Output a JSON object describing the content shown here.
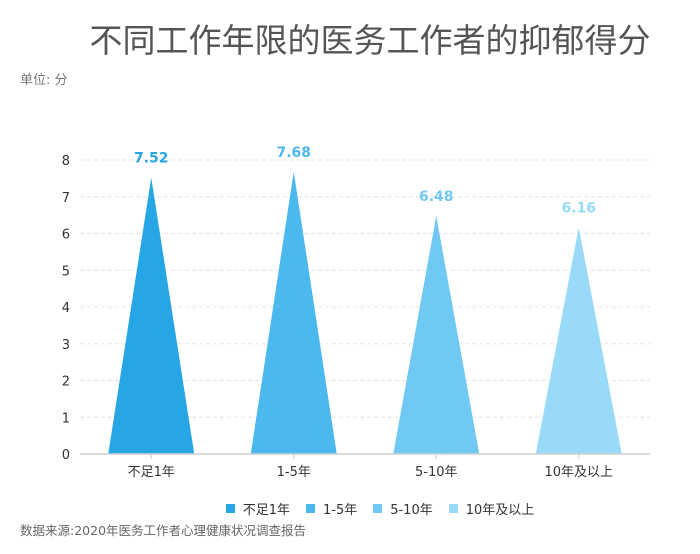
{
  "title": "不同工作年限的医务工作者的抑郁得分",
  "unit_label": "单位: 分",
  "source": "数据来源:2020年医务工作者心理健康状况调查报告",
  "chart_data": {
    "type": "bar",
    "bar_shape": "triangle",
    "categories": [
      "不足1年",
      "1-5年",
      "5-10年",
      "10年及以上"
    ],
    "values": [
      7.52,
      7.68,
      6.48,
      6.16
    ],
    "data_labels": [
      "7.52",
      "7.68",
      "6.48",
      "6.16"
    ],
    "colors": [
      "#27a6e5",
      "#4bb8ee",
      "#6fc9f3",
      "#98daf8"
    ],
    "ylim": [
      0,
      8
    ],
    "yticks": [
      0,
      1,
      2,
      3,
      4,
      5,
      6,
      7,
      8
    ],
    "grid": true,
    "legend": "bottom",
    "legend_entries": [
      "不足1年",
      "1-5年",
      "5-10年",
      "10年及以上"
    ]
  }
}
